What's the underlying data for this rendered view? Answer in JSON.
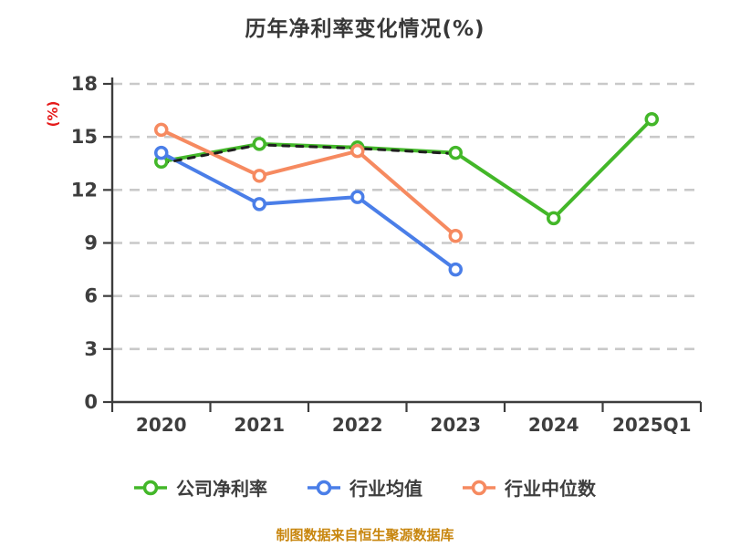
{
  "page": {
    "footer_note": "制图数据来自恒生聚源数据库"
  },
  "chart_data": {
    "type": "line",
    "title": "历年净利率变化情况(%)",
    "ylabel": "(%)",
    "xlabel": "",
    "categories": [
      "2020",
      "2021",
      "2022",
      "2023",
      "2024",
      "2025Q1"
    ],
    "series": [
      {
        "name": "公司净利率",
        "key": "company-net-margin",
        "color": "#43b729",
        "style": "solid",
        "values": [
          13.6,
          14.6,
          14.4,
          14.1,
          10.4,
          16.0
        ]
      },
      {
        "name": "行业均值",
        "key": "industry-average",
        "color": "#4a7ee8",
        "style": "solid",
        "values": [
          14.1,
          11.2,
          11.6,
          7.5,
          null,
          null
        ]
      },
      {
        "name": "行业中位数",
        "key": "industry-median",
        "color": "#f68a60",
        "style": "solid",
        "values": [
          15.4,
          12.8,
          14.2,
          9.4,
          null,
          null
        ]
      },
      {
        "name": "",
        "key": "unlabeled-dashed-overlay",
        "color": "#1f1f1f",
        "style": "dashed",
        "values": [
          13.5,
          14.55,
          14.35,
          14.05,
          null,
          null
        ],
        "note": "black dashed overlay tracking the company line, not shown in legend"
      }
    ],
    "ylim": [
      0,
      18
    ],
    "ytick_step": 3,
    "yticks": [
      0,
      3,
      6,
      9,
      12,
      15,
      18
    ],
    "grid": "dashed horizontal",
    "legend_position": "bottom",
    "colors": {
      "grid": "#c9c9c9",
      "axis": "#3d3d3d",
      "tick_text": "#3e3e3e",
      "title_text": "#383838",
      "ylabel_text": "#e51a1a",
      "footer_text": "#c8860e",
      "marker_fill": "#ffffff"
    }
  }
}
